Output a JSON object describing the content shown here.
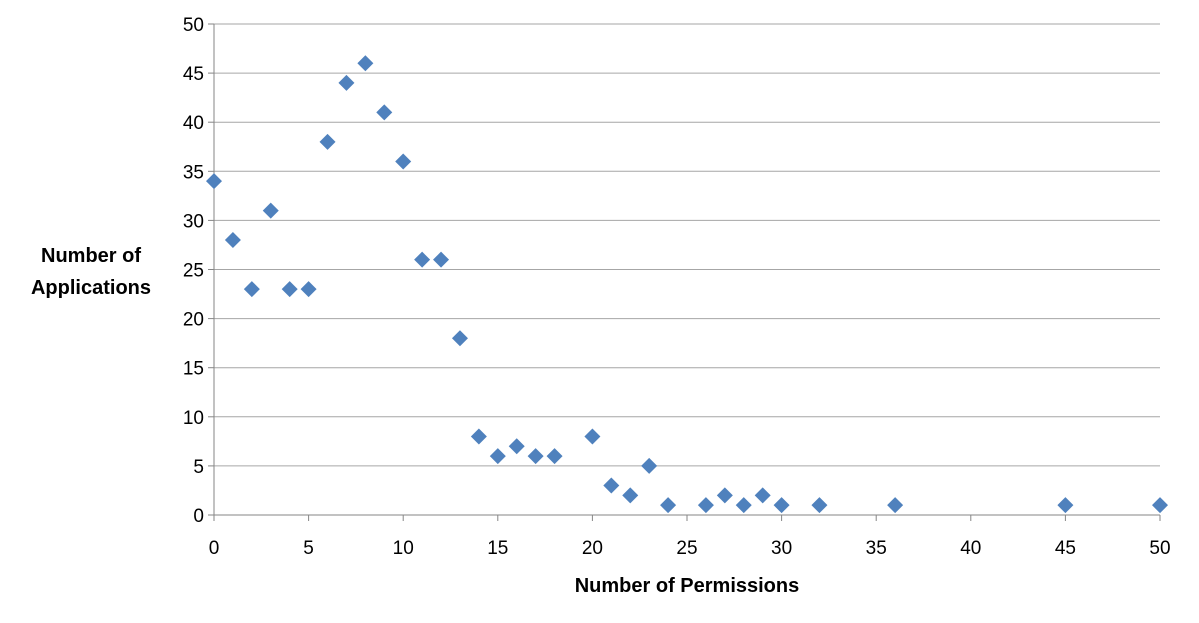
{
  "chart_data": {
    "type": "scatter",
    "title": "",
    "xlabel": "Number of Permissions",
    "ylabel_lines": [
      "Number of",
      "Applications"
    ],
    "xlim": [
      0,
      50
    ],
    "ylim": [
      0,
      50
    ],
    "xticks": [
      "0",
      "5",
      "10",
      "15",
      "20",
      "25",
      "30",
      "35",
      "40",
      "45",
      "50"
    ],
    "yticks": [
      "0",
      "5",
      "10",
      "15",
      "20",
      "25",
      "30",
      "35",
      "40",
      "45",
      "50"
    ],
    "grid": "horizontal",
    "legend": "none",
    "marker": "diamond",
    "marker_color": "#4F81BD",
    "grid_color": "#A6A6A6",
    "axis_color": "#868686",
    "points": [
      {
        "x": 0,
        "y": 34
      },
      {
        "x": 1,
        "y": 28
      },
      {
        "x": 2,
        "y": 23
      },
      {
        "x": 3,
        "y": 31
      },
      {
        "x": 4,
        "y": 23
      },
      {
        "x": 5,
        "y": 23
      },
      {
        "x": 6,
        "y": 38
      },
      {
        "x": 7,
        "y": 44
      },
      {
        "x": 8,
        "y": 46
      },
      {
        "x": 9,
        "y": 41
      },
      {
        "x": 10,
        "y": 36
      },
      {
        "x": 11,
        "y": 26
      },
      {
        "x": 12,
        "y": 26
      },
      {
        "x": 13,
        "y": 18
      },
      {
        "x": 14,
        "y": 8
      },
      {
        "x": 15,
        "y": 6
      },
      {
        "x": 16,
        "y": 7
      },
      {
        "x": 17,
        "y": 6
      },
      {
        "x": 18,
        "y": 6
      },
      {
        "x": 20,
        "y": 8
      },
      {
        "x": 21,
        "y": 3
      },
      {
        "x": 22,
        "y": 2
      },
      {
        "x": 23,
        "y": 5
      },
      {
        "x": 24,
        "y": 1
      },
      {
        "x": 26,
        "y": 1
      },
      {
        "x": 27,
        "y": 2
      },
      {
        "x": 28,
        "y": 1
      },
      {
        "x": 29,
        "y": 2
      },
      {
        "x": 30,
        "y": 1
      },
      {
        "x": 32,
        "y": 1
      },
      {
        "x": 36,
        "y": 1
      },
      {
        "x": 45,
        "y": 1
      },
      {
        "x": 50,
        "y": 1
      }
    ]
  }
}
